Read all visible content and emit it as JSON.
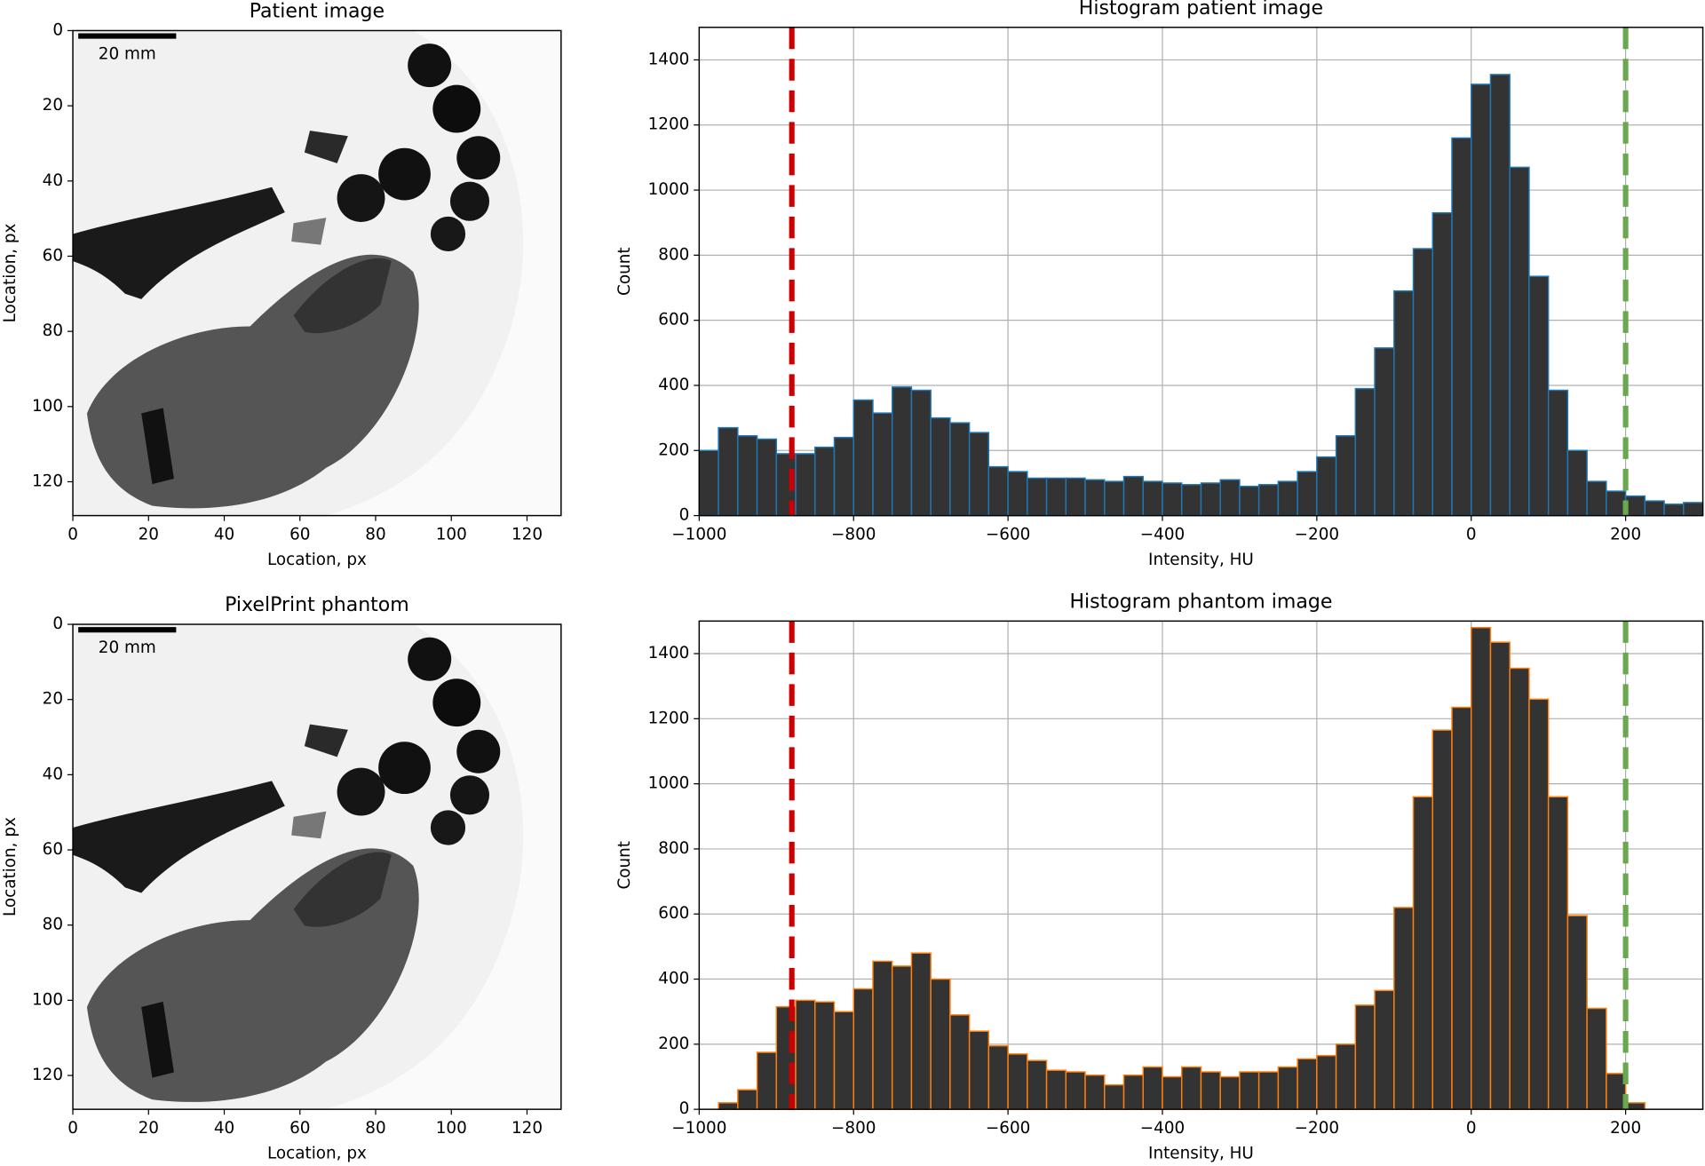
{
  "chart_data": [
    {
      "type": "image",
      "title": "Patient image",
      "xlabel": "Location, px",
      "ylabel": "Location, px",
      "annotation": "20 mm",
      "xlim": [
        0,
        129
      ],
      "ylim": [
        129,
        0
      ],
      "xticks": [
        0,
        20,
        40,
        60,
        80,
        100,
        120
      ],
      "yticks": [
        0,
        20,
        40,
        60,
        80,
        100,
        120
      ],
      "grid": false
    },
    {
      "type": "histogram",
      "title": "Histogram patient image",
      "xlabel": "Intensity, HU",
      "ylabel": "Count",
      "xlim": [
        -1000,
        300
      ],
      "ylim": [
        0,
        1500
      ],
      "xticks": [
        {
          "value": -1000,
          "label": "−1000"
        },
        {
          "value": -800,
          "label": "−800"
        },
        {
          "value": -600,
          "label": "−600"
        },
        {
          "value": -400,
          "label": "−400"
        },
        {
          "value": -200,
          "label": "−200"
        },
        0,
        200
      ],
      "yticks": [
        0,
        200,
        400,
        600,
        800,
        1000,
        1200,
        1400
      ],
      "grid": true,
      "fill_color": "#333333",
      "color": "#1f77b4",
      "bins": [
        -1000,
        -975,
        -950,
        -925,
        -900,
        -875,
        -850,
        -825,
        -800,
        -775,
        -750,
        -725,
        -700,
        -675,
        -650,
        -625,
        -600,
        -575,
        -550,
        -525,
        -500,
        -475,
        -450,
        -425,
        -400,
        -375,
        -350,
        -325,
        -300,
        -275,
        -250,
        -225,
        -200,
        -175,
        -150,
        -125,
        -100,
        -75,
        -50,
        -25,
        0,
        25,
        50,
        75,
        100,
        125,
        150,
        175,
        200,
        225,
        250,
        275,
        300
      ],
      "values": [
        200,
        270,
        245,
        235,
        190,
        190,
        210,
        240,
        355,
        315,
        395,
        385,
        300,
        285,
        255,
        150,
        135,
        115,
        115,
        115,
        110,
        105,
        120,
        105,
        100,
        95,
        100,
        110,
        90,
        95,
        105,
        135,
        180,
        245,
        390,
        515,
        690,
        820,
        930,
        1160,
        1325,
        1355,
        1070,
        735,
        385,
        200,
        105,
        75,
        60,
        45,
        35,
        40
      ],
      "vlines": [
        {
          "value": -880,
          "color": "#cc0000"
        },
        {
          "value": 200,
          "color": "#6aa84f"
        }
      ]
    },
    {
      "type": "image",
      "title": "PixelPrint phantom",
      "xlabel": "Location, px",
      "ylabel": "Location, px",
      "annotation": "20 mm",
      "xlim": [
        0,
        129
      ],
      "ylim": [
        129,
        0
      ],
      "xticks": [
        0,
        20,
        40,
        60,
        80,
        100,
        120
      ],
      "yticks": [
        0,
        20,
        40,
        60,
        80,
        100,
        120
      ],
      "grid": false
    },
    {
      "type": "histogram",
      "title": "Histogram phantom image",
      "xlabel": "Intensity, HU",
      "ylabel": "Count",
      "xlim": [
        -1000,
        300
      ],
      "ylim": [
        0,
        1500
      ],
      "xticks": [
        {
          "value": -1000,
          "label": "−1000"
        },
        {
          "value": -800,
          "label": "−800"
        },
        {
          "value": -600,
          "label": "−600"
        },
        {
          "value": -400,
          "label": "−400"
        },
        {
          "value": -200,
          "label": "−200"
        },
        0,
        200
      ],
      "yticks": [
        0,
        200,
        400,
        600,
        800,
        1000,
        1200,
        1400
      ],
      "grid": true,
      "fill_color": "#333333",
      "color": "#ff7f0e",
      "bins": [
        -1000,
        -975,
        -950,
        -925,
        -900,
        -875,
        -850,
        -825,
        -800,
        -775,
        -750,
        -725,
        -700,
        -675,
        -650,
        -625,
        -600,
        -575,
        -550,
        -525,
        -500,
        -475,
        -450,
        -425,
        -400,
        -375,
        -350,
        -325,
        -300,
        -275,
        -250,
        -225,
        -200,
        -175,
        -150,
        -125,
        -100,
        -75,
        -50,
        -25,
        0,
        25,
        50,
        75,
        100,
        125,
        150,
        175,
        200,
        225,
        250,
        275,
        300
      ],
      "values": [
        0,
        20,
        60,
        175,
        315,
        335,
        330,
        300,
        370,
        455,
        440,
        480,
        400,
        290,
        240,
        195,
        170,
        150,
        120,
        115,
        105,
        75,
        105,
        130,
        100,
        130,
        115,
        100,
        115,
        115,
        130,
        155,
        165,
        200,
        320,
        365,
        620,
        960,
        1165,
        1235,
        1480,
        1435,
        1355,
        1260,
        960,
        595,
        310,
        110,
        20,
        0,
        0,
        0
      ],
      "vlines": [
        {
          "value": -880,
          "color": "#cc0000"
        },
        {
          "value": 200,
          "color": "#6aa84f"
        }
      ]
    }
  ]
}
